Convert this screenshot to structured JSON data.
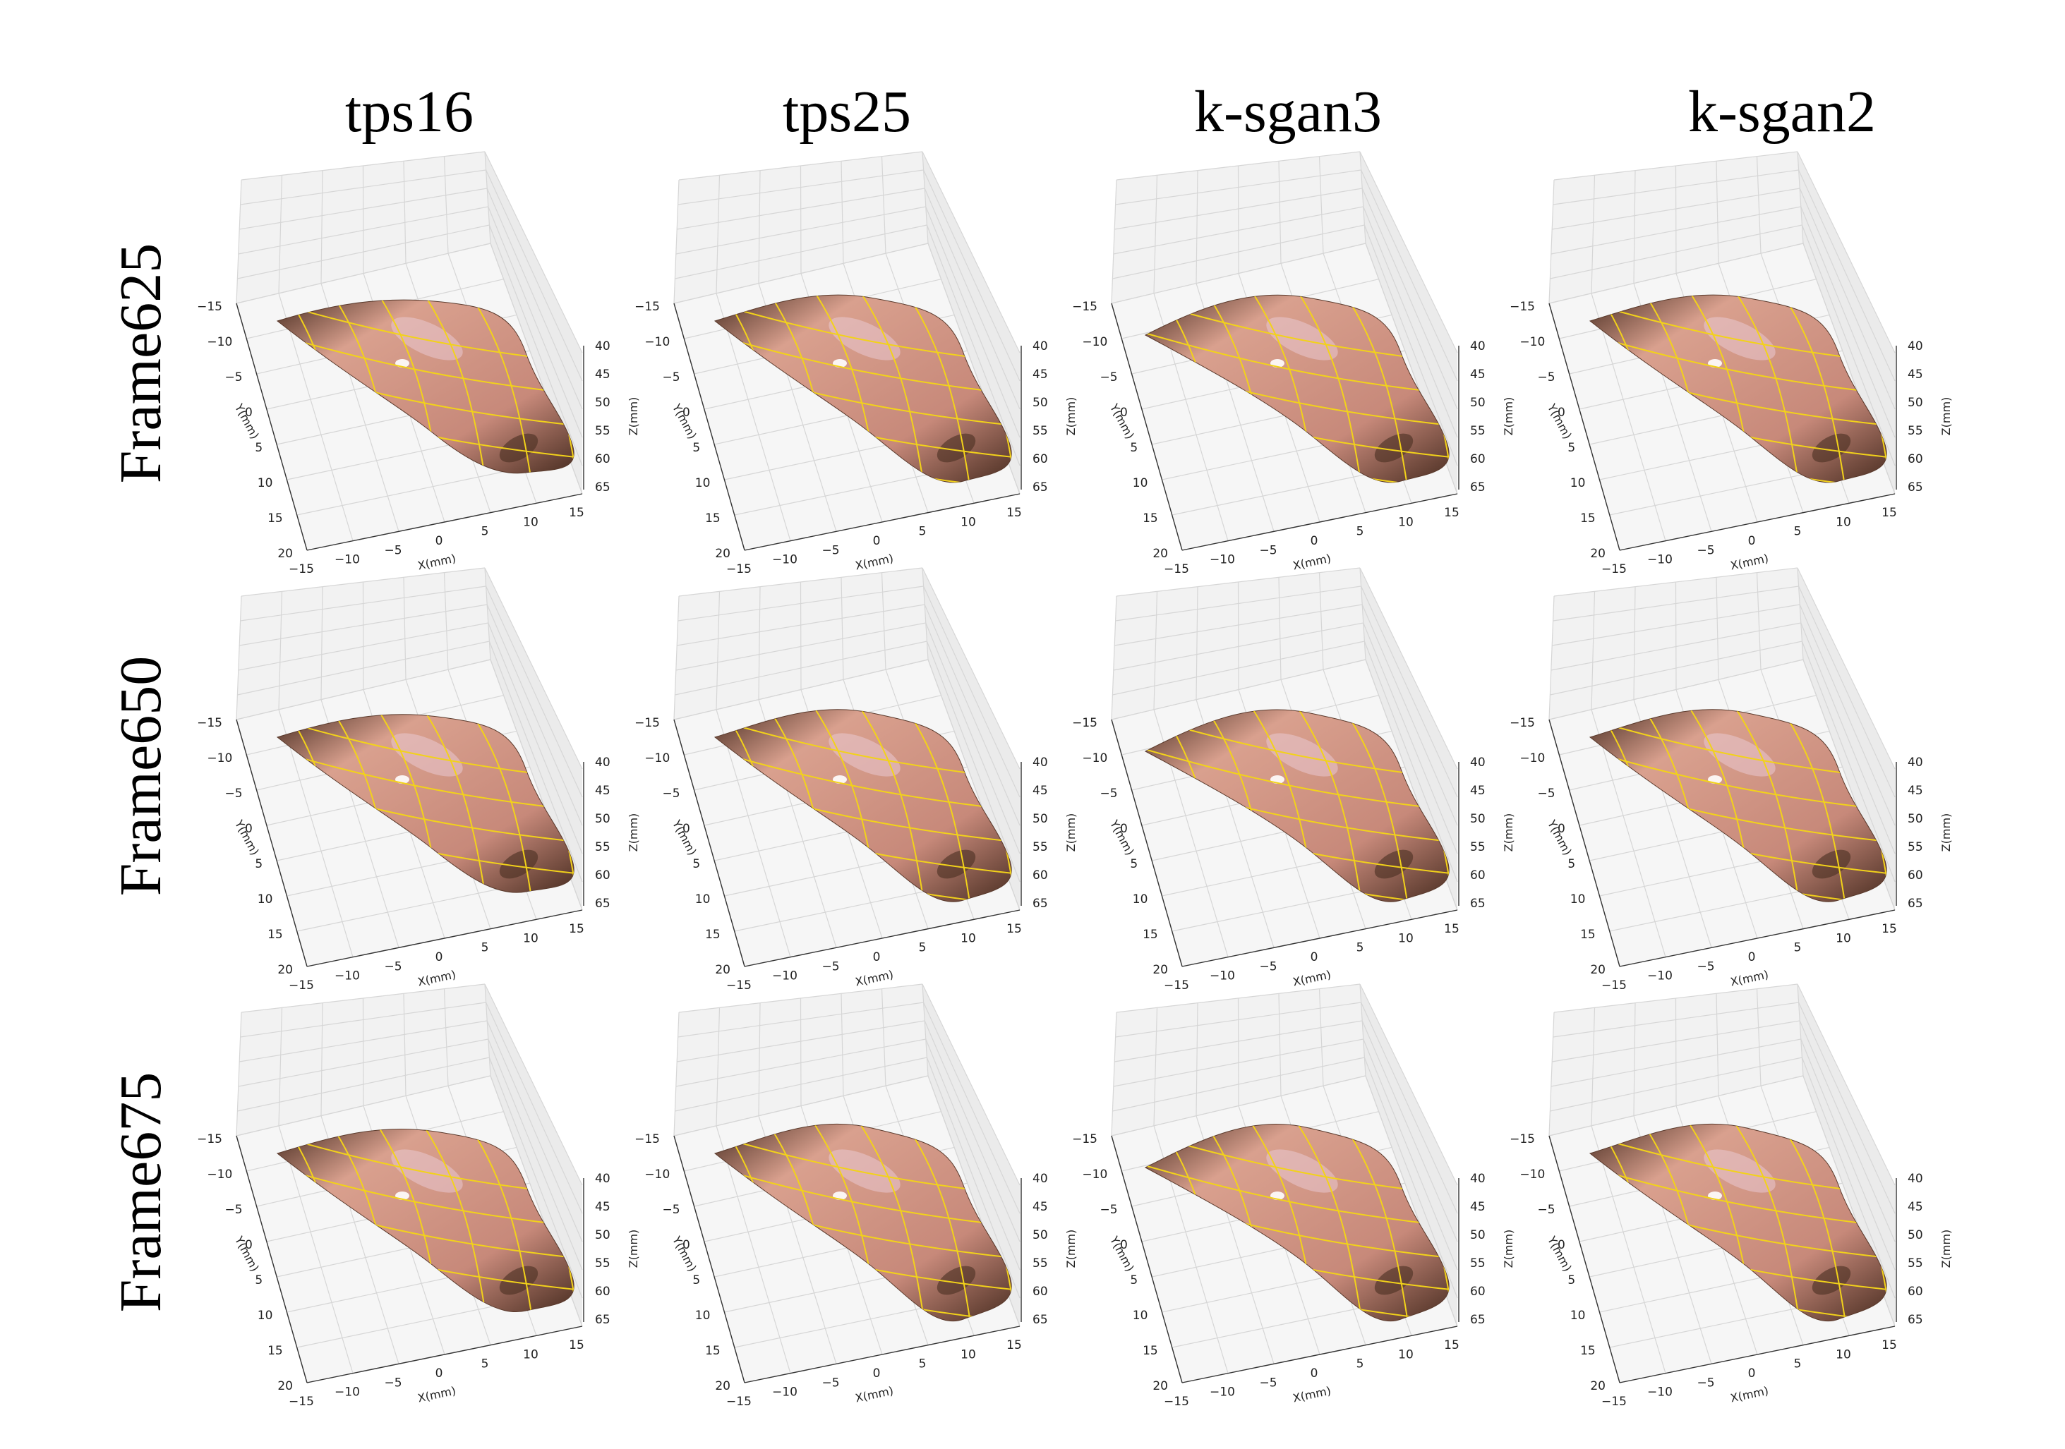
{
  "columns": [
    "tps16",
    "tps25",
    "k-sgan3",
    "k-sgan2"
  ],
  "rows": [
    "Frame625",
    "Frame650",
    "Frame675"
  ],
  "axes": {
    "x_label": "X(mm)",
    "y_label": "Y(mm)",
    "z_label": "Z(mm)",
    "x_ticks": [
      "−15",
      "−10",
      "−5",
      "0",
      "5",
      "10",
      "15"
    ],
    "y_ticks": [
      "−15",
      "−10",
      "−5",
      "0",
      "5",
      "10",
      "15",
      "20"
    ],
    "z_ticks": [
      "40",
      "45",
      "50",
      "55",
      "60",
      "65"
    ]
  },
  "colors": {
    "surface_light": "#d9a08e",
    "surface_dark": "#4a2e22",
    "grid_overlay": "#f2d21a",
    "pane": "#f2f2f2",
    "pane_grid": "#d6d6d6"
  },
  "chart_data": {
    "type": "surface-3d",
    "xlim": [
      -15,
      15
    ],
    "ylim": [
      -15,
      20
    ],
    "zlim": [
      40,
      65
    ],
    "z_axis_inverted": true,
    "grid": true,
    "layout": "3 rows x 4 columns of 3D reconstructed textured surfaces"
  }
}
